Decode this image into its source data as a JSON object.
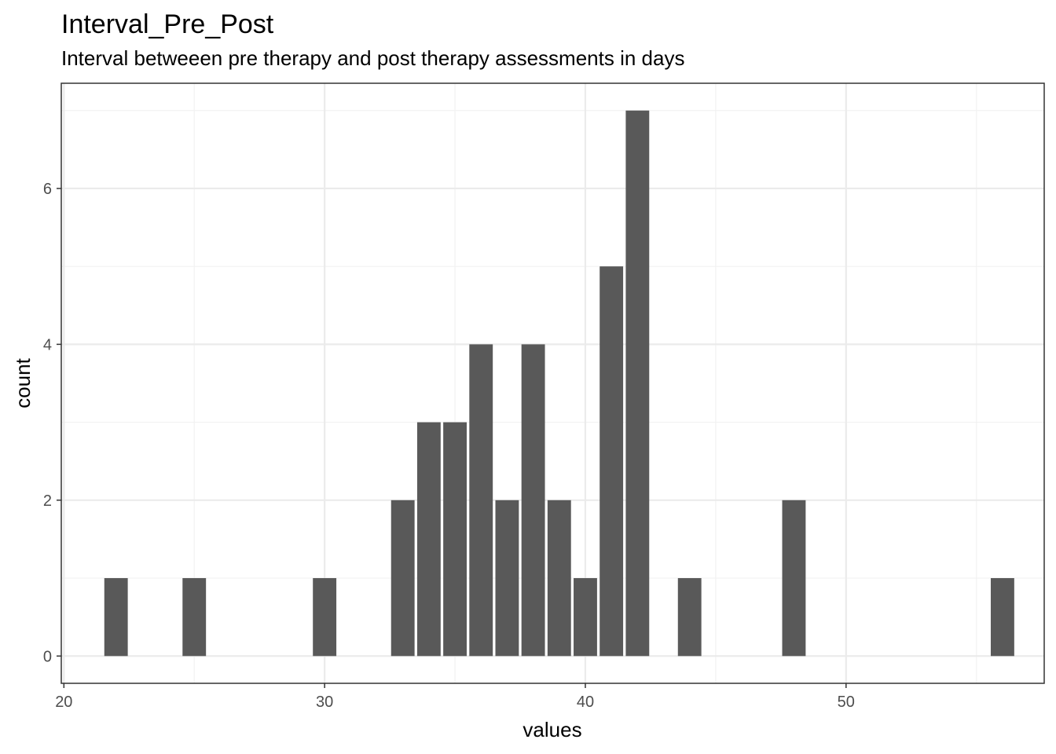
{
  "chart_data": {
    "type": "bar",
    "title": "Interval_Pre_Post",
    "subtitle": "Interval betweeen pre therapy and post therapy assessments in days",
    "xlabel": "values",
    "ylabel": "count",
    "xlim": [
      19.9,
      57.6
    ],
    "ylim": [
      -0.35,
      7.35
    ],
    "x_ticks": [
      20,
      30,
      40,
      50
    ],
    "y_ticks": [
      0,
      2,
      4,
      6
    ],
    "x_minor_ticks": [
      25,
      35,
      45,
      55
    ],
    "y_minor_ticks": [
      1,
      3,
      5,
      7
    ],
    "grid": true,
    "bin_width": 1,
    "bars": [
      {
        "x": 22,
        "count": 1
      },
      {
        "x": 25,
        "count": 1
      },
      {
        "x": 30,
        "count": 1
      },
      {
        "x": 33,
        "count": 2
      },
      {
        "x": 34,
        "count": 3
      },
      {
        "x": 35,
        "count": 3
      },
      {
        "x": 36,
        "count": 4
      },
      {
        "x": 37,
        "count": 2
      },
      {
        "x": 38,
        "count": 4
      },
      {
        "x": 39,
        "count": 2
      },
      {
        "x": 40,
        "count": 1
      },
      {
        "x": 41,
        "count": 5
      },
      {
        "x": 42,
        "count": 7
      },
      {
        "x": 44,
        "count": 1
      },
      {
        "x": 48,
        "count": 2
      },
      {
        "x": 56,
        "count": 1
      }
    ],
    "colors": {
      "bar": "#595959",
      "grid_major": "#ebebeb",
      "grid_minor": "#f2f2f2",
      "panel_border": "#333333",
      "tick_text": "#4d4d4d"
    }
  }
}
